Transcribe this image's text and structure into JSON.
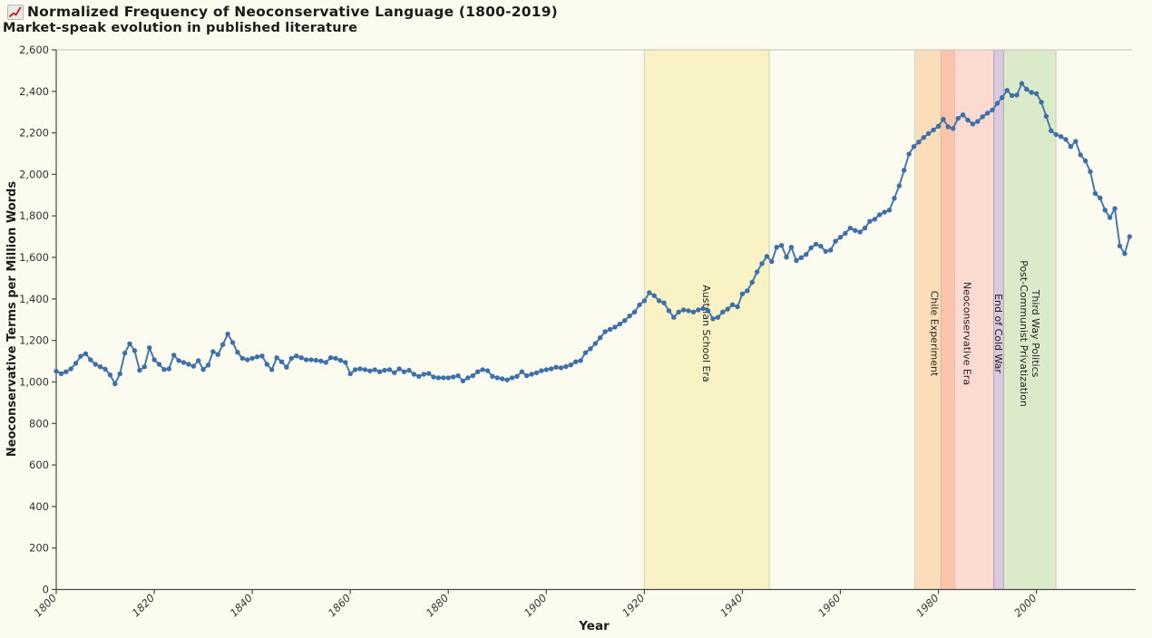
{
  "header": {
    "icon": "red-line-chart-icon",
    "title": "Normalized Frequency of Neoconservative Language (1800-2019)",
    "subtitle": "Market-speak evolution in published literature"
  },
  "colors": {
    "background": "#fcfbef",
    "axis": "#4a4a4a",
    "tick_text": "#333333",
    "top_border": "#c2c2b4",
    "series_line": "#4878b0",
    "series_dot": "#3d6fa8",
    "band_border": "rgba(130,130,130,0.30)",
    "icon_red": "#cc2222"
  },
  "chart_data": {
    "type": "line",
    "title": "Normalized Frequency of Neoconservative Language (1800-2019)",
    "subtitle": "Market-speak evolution in published literature",
    "xlabel": "Year",
    "ylabel": "Neoconservative Terms per Million Words",
    "x_start": 1800,
    "x_end": 2019,
    "ylim": [
      0,
      2600
    ],
    "ytick_step": 200,
    "yticks": [
      "0",
      "200",
      "400",
      "600",
      "800",
      "1,000",
      "1,200",
      "1,400",
      "1,600",
      "1,800",
      "2,000",
      "2,200",
      "2,400",
      "2,600"
    ],
    "xticks": [
      1800,
      1820,
      1840,
      1860,
      1880,
      1900,
      1920,
      1940,
      1960,
      1980,
      2000
    ],
    "grid": "top-border-only",
    "legend": "none",
    "marker": "circle",
    "series": [
      {
        "name": "Neoconservative Terms per Million Words",
        "color": "#3d6fa8",
        "start_year": 1800,
        "values": [
          1052,
          1040,
          1049,
          1063,
          1090,
          1124,
          1136,
          1107,
          1085,
          1073,
          1062,
          1034,
          991,
          1039,
          1139,
          1184,
          1151,
          1056,
          1073,
          1165,
          1107,
          1085,
          1060,
          1063,
          1129,
          1103,
          1094,
          1085,
          1076,
          1103,
          1060,
          1081,
          1146,
          1132,
          1180,
          1231,
          1190,
          1143,
          1114,
          1107,
          1114,
          1121,
          1125,
          1085,
          1059,
          1117,
          1097,
          1071,
          1114,
          1125,
          1117,
          1107,
          1107,
          1104,
          1101,
          1094,
          1117,
          1114,
          1104,
          1094,
          1039,
          1059,
          1063,
          1059,
          1053,
          1059,
          1049,
          1056,
          1059,
          1045,
          1063,
          1049,
          1056,
          1037,
          1027,
          1037,
          1041,
          1024,
          1020,
          1020,
          1020,
          1024,
          1030,
          1005,
          1020,
          1030,
          1049,
          1059,
          1054,
          1027,
          1020,
          1015,
          1010,
          1020,
          1027,
          1049,
          1030,
          1037,
          1044,
          1054,
          1059,
          1063,
          1071,
          1068,
          1074,
          1082,
          1097,
          1103,
          1141,
          1160,
          1185,
          1213,
          1242,
          1253,
          1264,
          1279,
          1296,
          1318,
          1337,
          1372,
          1391,
          1430,
          1416,
          1391,
          1381,
          1343,
          1311,
          1337,
          1347,
          1343,
          1337,
          1347,
          1354,
          1343,
          1304,
          1311,
          1337,
          1351,
          1372,
          1362,
          1424,
          1439,
          1480,
          1530,
          1570,
          1605,
          1580,
          1649,
          1658,
          1601,
          1649,
          1585,
          1599,
          1614,
          1646,
          1664,
          1654,
          1629,
          1635,
          1678,
          1697,
          1716,
          1741,
          1730,
          1722,
          1741,
          1774,
          1784,
          1806,
          1818,
          1828,
          1885,
          1945,
          2020,
          2098,
          2134,
          2156,
          2178,
          2197,
          2214,
          2232,
          2265,
          2229,
          2221,
          2270,
          2287,
          2261,
          2243,
          2255,
          2278,
          2295,
          2310,
          2342,
          2370,
          2405,
          2380,
          2382,
          2438,
          2410,
          2395,
          2389,
          2348,
          2280,
          2210,
          2192,
          2182,
          2168,
          2134,
          2159,
          2094,
          2065,
          2013,
          1908,
          1886,
          1828,
          1792,
          1835,
          1655,
          1618,
          1700
        ]
      }
    ],
    "annotations": [
      {
        "label": "Austrian School Era",
        "start": 1920,
        "end": 1945.5,
        "color": "rgba(240,225,105,0.32)"
      },
      {
        "label": "Chile Experiment",
        "start": 1975.2,
        "end": 1983.3,
        "color": "rgba(247,168,85,0.35)"
      },
      {
        "label": "Neoconservative Era",
        "start": 1980.5,
        "end": 1991.3,
        "color": "rgba(247,143,143,0.30)"
      },
      {
        "label": "End of Cold War",
        "start": 1991.3,
        "end": 1993.3,
        "color": "rgba(165,125,200,0.40)"
      },
      {
        "label": "Third Way Politics\nPost-Communist Privatization",
        "start": 1993.3,
        "end": 2004,
        "color": "rgba(148,200,120,0.32)"
      }
    ]
  }
}
